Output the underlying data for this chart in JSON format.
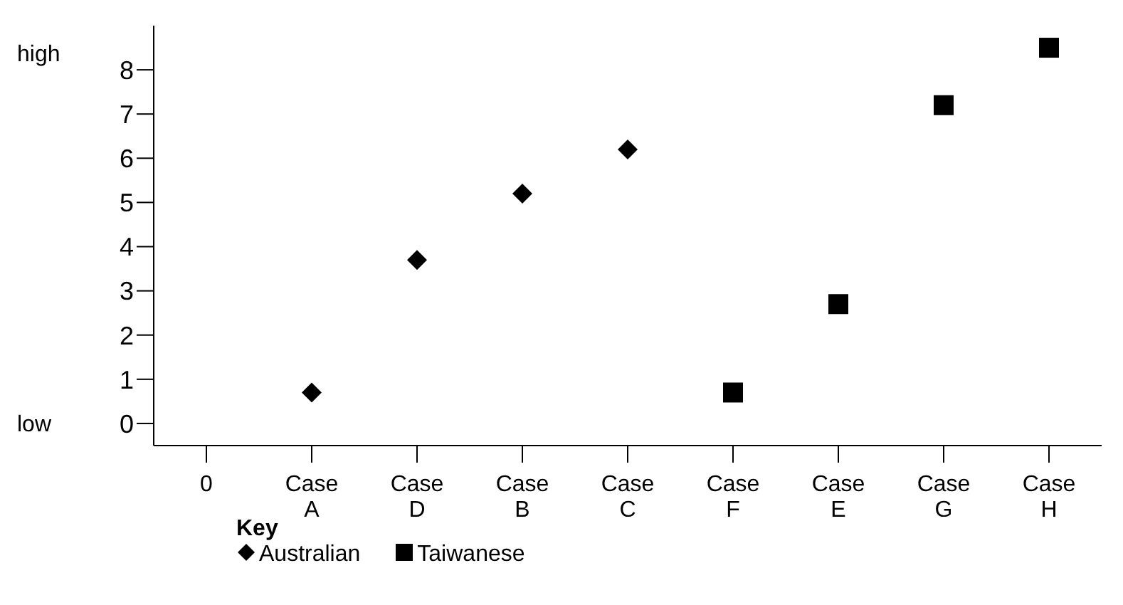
{
  "chart_data": {
    "type": "scatter",
    "categories": [
      "0",
      "Case A",
      "Case D",
      "Case B",
      "Case C",
      "Case F",
      "Case E",
      "Case G",
      "Case H"
    ],
    "series": [
      {
        "name": "Australian",
        "color": "#000000",
        "marker": "diamond",
        "values": [
          null,
          0.7,
          3.7,
          5.2,
          6.2,
          null,
          null,
          null,
          null
        ]
      },
      {
        "name": "Taiwanese",
        "color": "#000000",
        "marker": "square",
        "values": [
          null,
          null,
          null,
          null,
          null,
          0.7,
          2.7,
          7.2,
          8.5
        ]
      }
    ],
    "ylim": [
      -0.5,
      9
    ],
    "yticks": [
      0,
      1,
      2,
      3,
      4,
      5,
      6,
      7,
      8
    ],
    "grid": false,
    "legend": "bottom left",
    "legend_title": "Key",
    "annotations": [
      "high",
      "low"
    ]
  }
}
